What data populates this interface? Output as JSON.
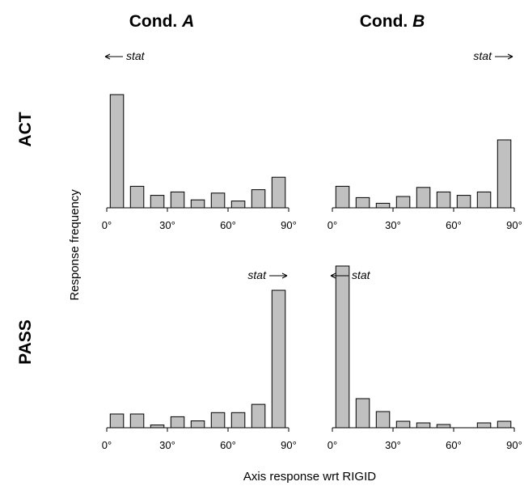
{
  "figure": {
    "col_titles": [
      {
        "prefix": "Cond. ",
        "italic": "A"
      },
      {
        "prefix": "Cond. ",
        "italic": "B"
      }
    ],
    "row_titles": [
      "ACT",
      "PASS"
    ],
    "ylabel": "Response frequency",
    "xlabel": "Axis response wrt RIGID",
    "stat_label": "stat"
  },
  "chart_data": [
    {
      "type": "bar",
      "panel": "ACT / Cond. A",
      "x": [
        5,
        15,
        25,
        35,
        45,
        55,
        65,
        75,
        85
      ],
      "values": [
        1.0,
        0.19,
        0.11,
        0.14,
        0.07,
        0.13,
        0.06,
        0.16,
        0.27
      ],
      "xlim": [
        0,
        90
      ],
      "xticks": [
        "0°",
        "30°",
        "60°",
        "90°"
      ],
      "stat_direction": "left",
      "bar_color": "#c0c0c0"
    },
    {
      "type": "bar",
      "panel": "ACT / Cond. B",
      "x": [
        5,
        15,
        25,
        35,
        45,
        55,
        65,
        75,
        85
      ],
      "values": [
        0.19,
        0.09,
        0.04,
        0.1,
        0.18,
        0.14,
        0.11,
        0.14,
        0.6
      ],
      "xlim": [
        0,
        90
      ],
      "xticks": [
        "0°",
        "30°",
        "60°",
        "90°"
      ],
      "stat_direction": "right",
      "bar_color": "#c0c0c0"
    },
    {
      "type": "bar",
      "panel": "PASS / Cond. A",
      "x": [
        5,
        15,
        25,
        35,
        45,
        55,
        65,
        75,
        85
      ],
      "values": [
        0.1,
        0.1,
        0.02,
        0.08,
        0.05,
        0.11,
        0.11,
        0.17,
        1.0
      ],
      "xlim": [
        0,
        90
      ],
      "xticks": [
        "0°",
        "30°",
        "60°",
        "90°"
      ],
      "stat_direction": "right",
      "bar_color": "#c0c0c0"
    },
    {
      "type": "bar",
      "panel": "PASS / Cond. B",
      "x": [
        5,
        15,
        25,
        35,
        45,
        55,
        65,
        75,
        85
      ],
      "values": [
        1.0,
        0.18,
        0.1,
        0.04,
        0.03,
        0.02,
        0.0,
        0.03,
        0.04
      ],
      "xlim": [
        0,
        90
      ],
      "xticks": [
        "0°",
        "30°",
        "60°",
        "90°"
      ],
      "stat_direction": "left",
      "bar_color": "#c0c0c0"
    }
  ]
}
